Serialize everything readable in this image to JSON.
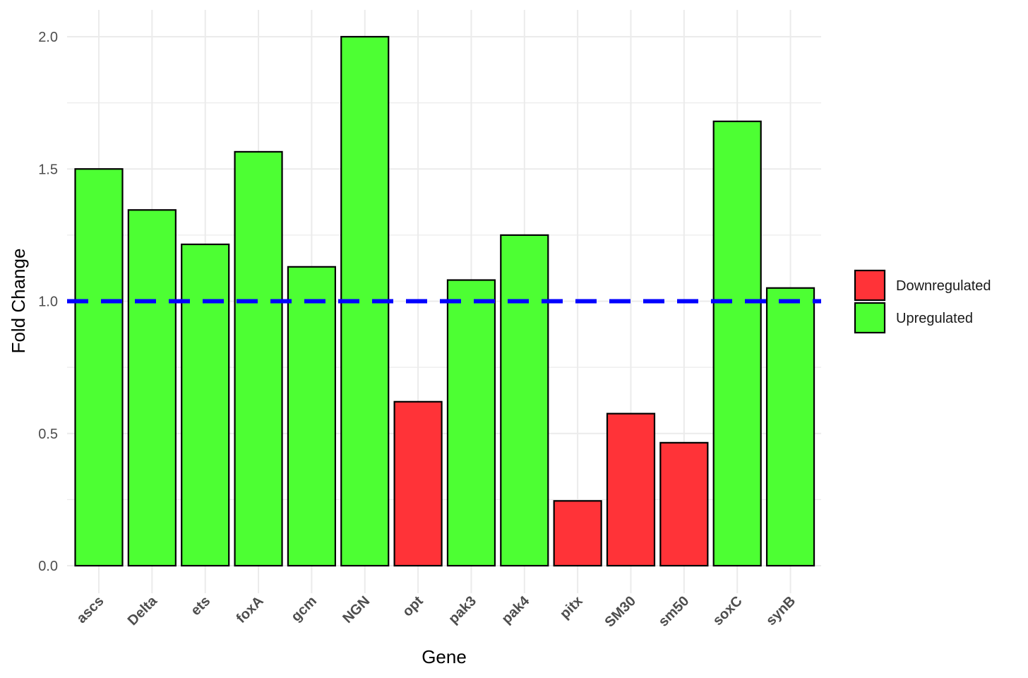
{
  "chart_data": {
    "type": "bar",
    "title": "",
    "xlabel": "Gene",
    "ylabel": "Fold Change",
    "ylim": [
      0,
      2.0
    ],
    "yticks": [
      "0.0",
      "0.5",
      "1.0",
      "1.5",
      "2.0"
    ],
    "grid": true,
    "reference_line": {
      "y": 1.0,
      "style": "dashed",
      "color": "#0000ff"
    },
    "categories": [
      "ascs",
      "Delta",
      "ets",
      "foxA",
      "gcm",
      "NGN",
      "opt",
      "pak3",
      "pak4",
      "pitx",
      "SM30",
      "sm50",
      "soxC",
      "synB"
    ],
    "values": [
      1.5,
      1.345,
      1.215,
      1.565,
      1.13,
      2.0,
      0.62,
      1.08,
      1.25,
      0.245,
      0.575,
      0.465,
      1.68,
      1.05
    ],
    "groups": [
      "Upregulated",
      "Upregulated",
      "Upregulated",
      "Upregulated",
      "Upregulated",
      "Upregulated",
      "Downregulated",
      "Upregulated",
      "Upregulated",
      "Downregulated",
      "Downregulated",
      "Downregulated",
      "Upregulated",
      "Upregulated"
    ],
    "legend": {
      "position": "right",
      "entries": [
        {
          "label": "Downregulated",
          "color": "#ff3338"
        },
        {
          "label": "Upregulated",
          "color": "#4dff33"
        }
      ]
    }
  }
}
